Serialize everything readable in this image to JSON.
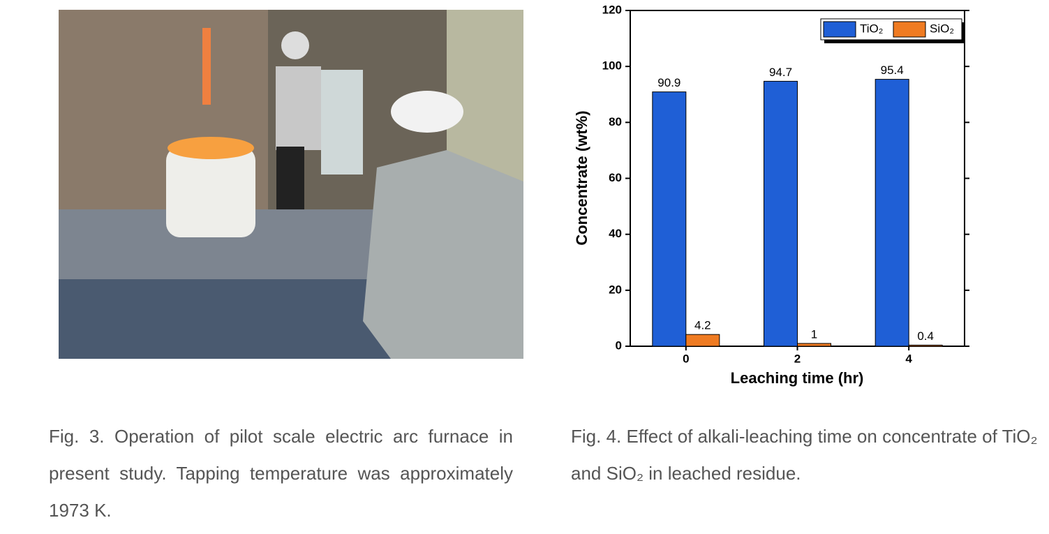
{
  "captions": [
    "Fig. 3. Operation of pilot scale electric arc furnace in present study. Tapping temperature was approximately 1973 K."
  ],
  "chart_data": {
    "type": "bar",
    "caption": "Fig. 4. Effect of alkali-leaching time on concentrate of TiO₂ and SiO₂ in leached residue.",
    "x_label": "Leaching time (hr)",
    "y_label": "Concentrate (wt%)",
    "categories": [
      "0",
      "2",
      "4"
    ],
    "series": [
      {
        "name": "TiO₂",
        "color": "#1f5fd6",
        "values": [
          90.9,
          94.7,
          95.4
        ]
      },
      {
        "name": "SiO₂",
        "color": "#ef7b22",
        "values": [
          4.2,
          1,
          0.4
        ]
      }
    ],
    "ylim": [
      0,
      120
    ],
    "yticks": [
      0,
      20,
      40,
      60,
      80,
      100,
      120
    ],
    "grid": false,
    "legend": "top-right"
  }
}
